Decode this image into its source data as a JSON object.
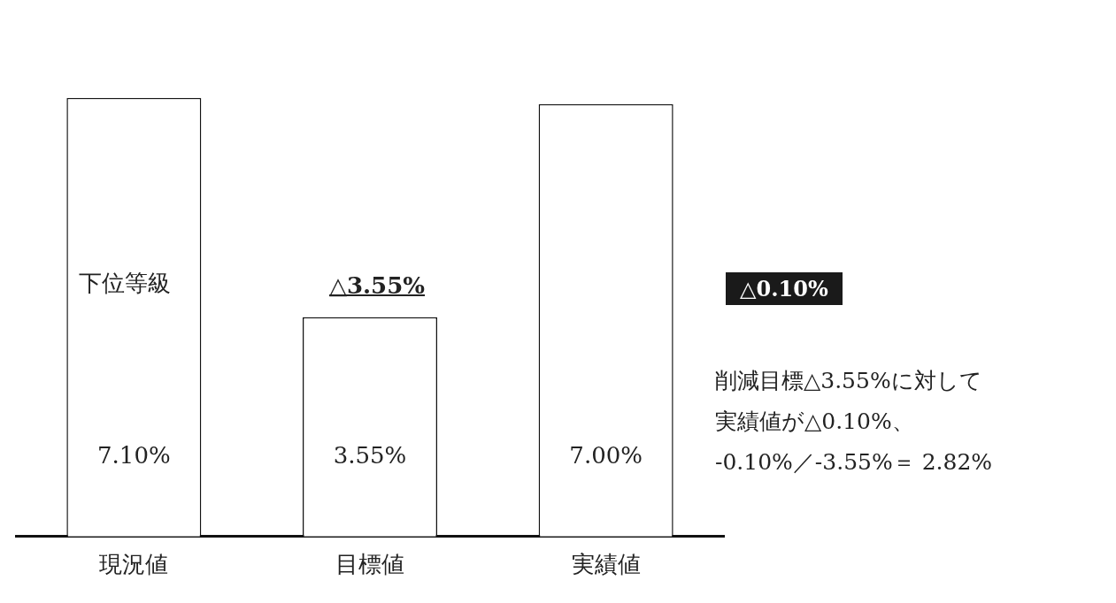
{
  "chart_data": {
    "type": "bar",
    "categories": [
      "現況値",
      "目標値",
      "実績値"
    ],
    "values": [
      7.1,
      3.55,
      7.0
    ],
    "color": "#ffffff",
    "data_labels": true,
    "value_labels": [
      "7.10%",
      "3.55%",
      "7.00%"
    ],
    "grid": false,
    "legend": false,
    "tick_labels": "x",
    "annotations": [
      "下位等級",
      "△3.55%",
      "△0.10%",
      "削減目標△3.55%に対して",
      "実績値が△0.10%、",
      "-0.10%／-3.55%＝ 2.82%"
    ]
  }
}
